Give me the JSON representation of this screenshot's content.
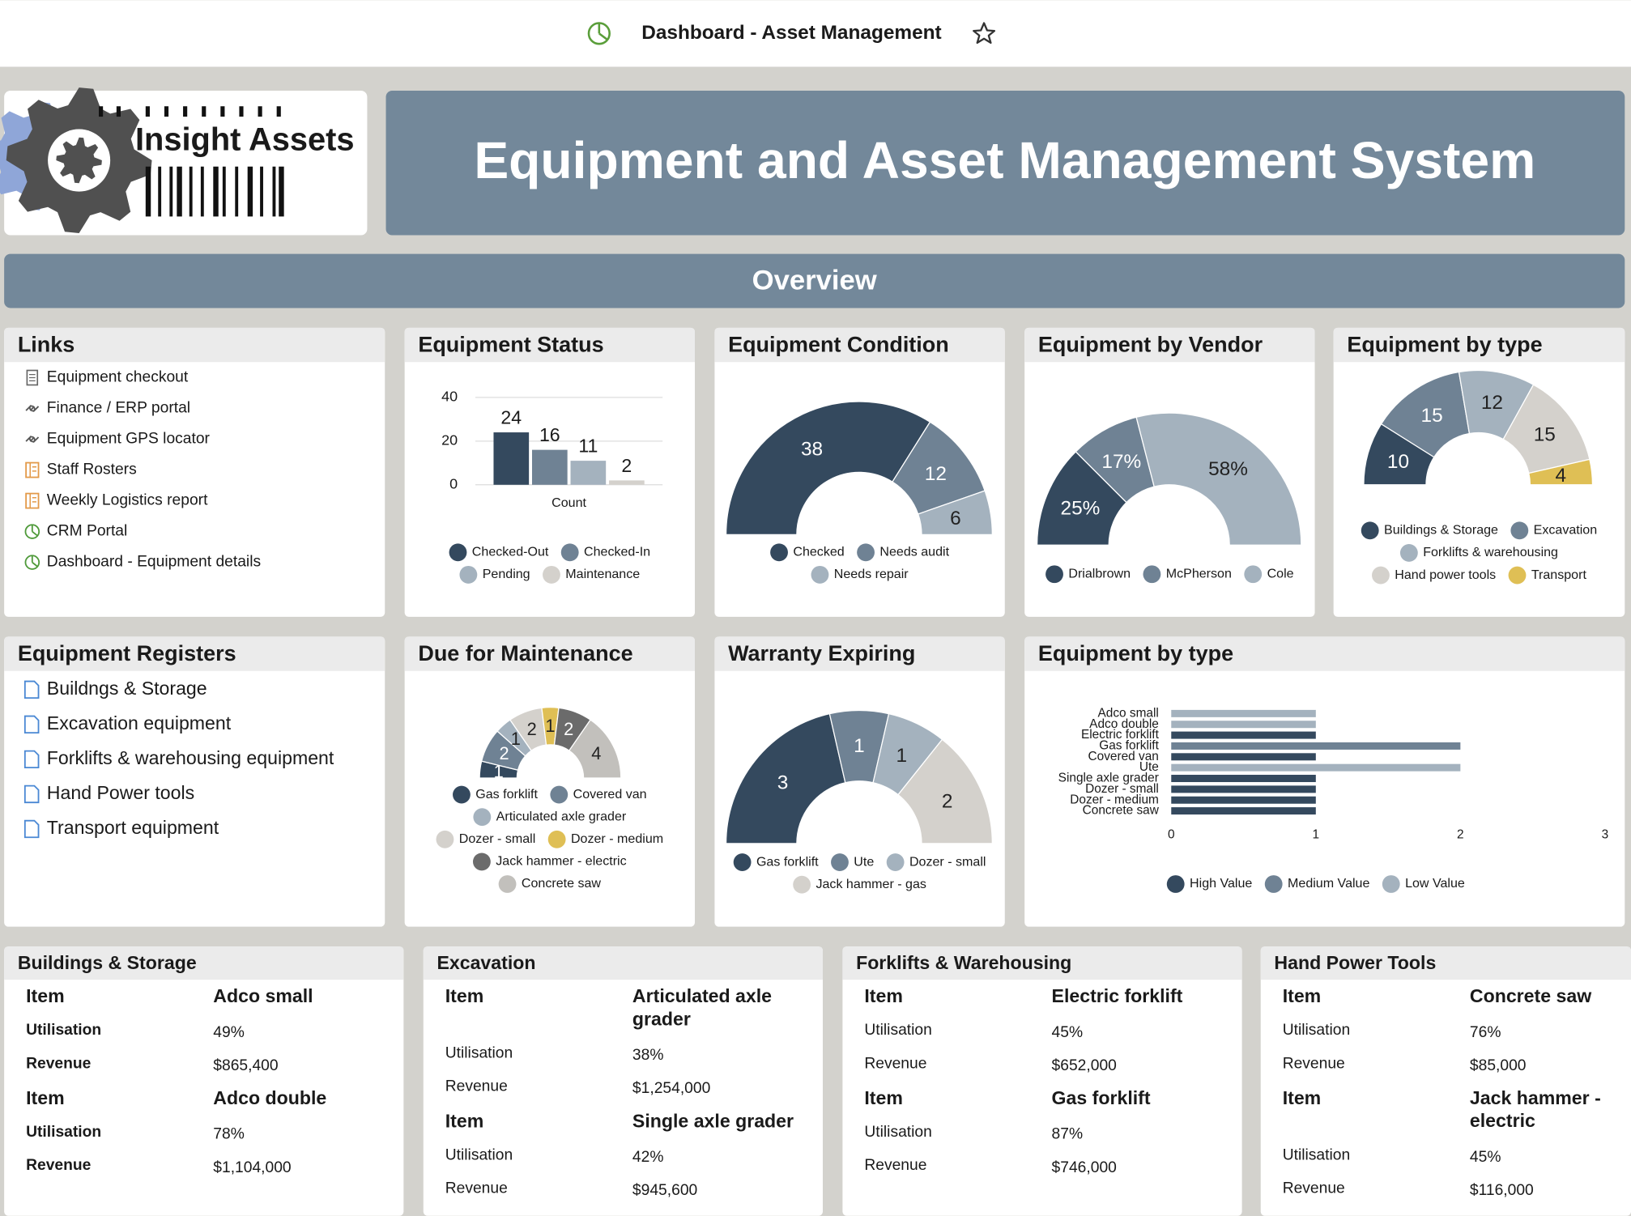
{
  "header": {
    "title": "Dashboard - Asset Management"
  },
  "logo": {
    "text": "Insight Assets"
  },
  "banner": {
    "title": "Equipment and Asset Management System"
  },
  "overview": {
    "title": "Overview"
  },
  "links": {
    "title": "Links",
    "items": [
      "Equipment checkout",
      "Finance / ERP portal",
      "Equipment GPS locator",
      "Staff Rosters",
      "Weekly Logistics report",
      "CRM Portal",
      "Dashboard - Equipment details"
    ]
  },
  "registers": {
    "title": "Equipment Registers",
    "items": [
      "Buildngs & Storage",
      "Excavation equipment",
      "Forklifts & warehousing equipment",
      "Hand Power tools",
      "Transport equipment"
    ]
  },
  "chart_data": [
    {
      "type": "bar",
      "title": "Equipment Status",
      "categories": [
        "Count"
      ],
      "series": [
        {
          "name": "Checked-Out",
          "color": "#34495e",
          "values": [
            24
          ]
        },
        {
          "name": "Checked-In",
          "color": "#6f8294",
          "values": [
            16
          ]
        },
        {
          "name": "Pending",
          "color": "#a4b2be",
          "values": [
            11
          ]
        },
        {
          "name": "Maintenance",
          "color": "#d4d1cc",
          "values": [
            2
          ]
        }
      ],
      "ylim": [
        0,
        40
      ],
      "yticks": [
        0,
        20,
        40
      ],
      "grid": true,
      "data_labels": true
    },
    {
      "type": "half-donut",
      "title": "Equipment Condition",
      "categories": [
        "Checked",
        "Needs audit",
        "Needs repair"
      ],
      "values": [
        38,
        12,
        6
      ],
      "colors": [
        "#34495e",
        "#6f8294",
        "#a4b2be"
      ]
    },
    {
      "type": "half-donut",
      "title": "Equipment by Vendor",
      "categories": [
        "Drialbrown",
        "McPherson",
        "Cole"
      ],
      "values": [
        25,
        17,
        58
      ],
      "value_labels": [
        "25%",
        "17%",
        "58%"
      ],
      "colors": [
        "#34495e",
        "#6f8294",
        "#a4b2be"
      ]
    },
    {
      "type": "half-donut",
      "title": "Equipment by type",
      "categories": [
        "Buildings & Storage",
        "Excavation",
        "Forklifts & warehousing",
        "Hand power tools",
        "Transport"
      ],
      "values": [
        10,
        15,
        12,
        15,
        4
      ],
      "colors": [
        "#34495e",
        "#6f8294",
        "#a4b2be",
        "#d4d1cc",
        "#dfbf55"
      ]
    },
    {
      "type": "half-donut",
      "title": "Due for Maintenance",
      "categories": [
        "Gas forklift",
        "Covered van",
        "Articulated axle grader",
        "Dozer - small",
        "Dozer - medium",
        "Jack hammer - electric",
        "Concrete saw"
      ],
      "values": [
        1,
        2,
        1,
        2,
        1,
        2,
        4
      ],
      "colors": [
        "#34495e",
        "#6f8294",
        "#a4b2be",
        "#d4d1cc",
        "#dfbf55",
        "#6b6b6b",
        "#c2c0bc"
      ]
    },
    {
      "type": "half-donut",
      "title": "Warranty Expiring",
      "categories": [
        "Gas forklift",
        "Ute",
        "Dozer - small",
        "Jack hammer - gas"
      ],
      "values": [
        3,
        1,
        1,
        2
      ],
      "colors": [
        "#34495e",
        "#6f8294",
        "#a4b2be",
        "#d4d1cc"
      ]
    },
    {
      "type": "bar",
      "orientation": "horizontal",
      "title": "Equipment by type",
      "categories": [
        "Adco small",
        "Adco double",
        "Electric forklift",
        "Gas forklift",
        "Covered van",
        "Ute",
        "Single axle grader",
        "Dozer - small",
        "Dozer - medium",
        "Concrete saw"
      ],
      "series": [
        {
          "name": "High Value",
          "color": "#34495e",
          "values": [
            null,
            null,
            1,
            null,
            1,
            null,
            1,
            1,
            1,
            1
          ]
        },
        {
          "name": "Medium Value",
          "color": "#6f8294",
          "values": [
            null,
            null,
            null,
            2,
            null,
            null,
            null,
            null,
            null,
            null
          ]
        },
        {
          "name": "Low Value",
          "color": "#a4b2be",
          "values": [
            1,
            1,
            null,
            null,
            null,
            2,
            null,
            null,
            null,
            null
          ]
        }
      ],
      "xlim": [
        0,
        3
      ],
      "xticks": [
        0,
        1,
        2,
        3
      ]
    }
  ],
  "cards": [
    {
      "title": "Buildings & Storage",
      "items": [
        {
          "item_label": "Item",
          "item": "Adco small",
          "utilisation_label": "Utilisation",
          "utilisation": "49%",
          "revenue_label": "Revenue",
          "revenue": "$865,400"
        },
        {
          "item_label": "Item",
          "item": "Adco double",
          "utilisation_label": "Utilisation",
          "utilisation": "78%",
          "revenue_label": "Revenue",
          "revenue": "$1,104,000"
        }
      ]
    },
    {
      "title": "Excavation",
      "items": [
        {
          "item_label": "Item",
          "item": "Articulated axle grader",
          "utilisation_label": "Utilisation",
          "utilisation": "38%",
          "revenue_label": "Revenue",
          "revenue": "$1,254,000"
        },
        {
          "item_label": "Item",
          "item": "Single axle grader",
          "utilisation_label": "Utilisation",
          "utilisation": "42%",
          "revenue_label": "Revenue",
          "revenue": "$945,600"
        }
      ]
    },
    {
      "title": "Forklifts & Warehousing",
      "items": [
        {
          "item_label": "Item",
          "item": "Electric forklift",
          "utilisation_label": "Utilisation",
          "utilisation": "45%",
          "revenue_label": "Revenue",
          "revenue": "$652,000"
        },
        {
          "item_label": "Item",
          "item": "Gas forklift",
          "utilisation_label": "Utilisation",
          "utilisation": "87%",
          "revenue_label": "Revenue",
          "revenue": "$746,000"
        }
      ]
    },
    {
      "title": "Hand Power Tools",
      "items": [
        {
          "item_label": "Item",
          "item": "Concrete saw",
          "utilisation_label": "Utilisation",
          "utilisation": "76%",
          "revenue_label": "Revenue",
          "revenue": "$85,000"
        },
        {
          "item_label": "Item",
          "item": "Jack hammer - electric",
          "utilisation_label": "Utilisation",
          "utilisation": "45%",
          "revenue_label": "Revenue",
          "revenue": "$116,000"
        }
      ]
    }
  ]
}
